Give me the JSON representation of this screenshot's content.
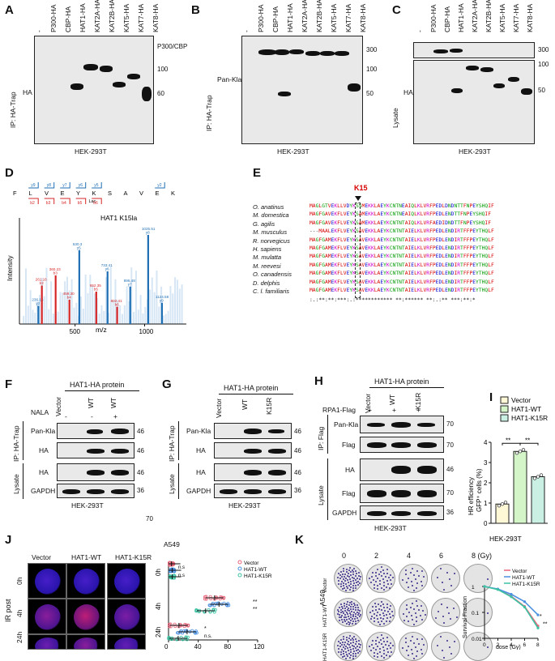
{
  "panels": {
    "A": "A",
    "B": "B",
    "C": "C",
    "D": "D",
    "E": "E",
    "F": "F",
    "G": "G",
    "H": "H",
    "I": "I",
    "J": "J",
    "K": "K"
  },
  "A": {
    "lanes": [
      "-",
      "P300-HA",
      "CBP-HA",
      "HAT1-HA",
      "KAT2A-HA",
      "KAT2B-HA",
      "KAT5-HA",
      "KAT7-HA",
      "KAT8-HA"
    ],
    "ip_label": "IP: HA-Trap",
    "blot_label": "HA",
    "markers": [
      "P300/CBP",
      "100",
      "60"
    ],
    "cell_line": "HEK-293T"
  },
  "B": {
    "lanes": [
      "-",
      "P300-HA",
      "CBP-HA",
      "HAT1-HA",
      "KAT2A-HA",
      "KAT2B-HA",
      "KAT5-HA",
      "KAT7-HA",
      "KAT8-HA"
    ],
    "ip_label": "IP: HA-Trap",
    "blot_label": "Pan-Kla",
    "markers": [
      "300",
      "100",
      "50"
    ],
    "cell_line": "HEK-293T"
  },
  "C": {
    "lanes": [
      "-",
      "P300-HA",
      "CBP-HA",
      "HAT1-HA",
      "KAT2A-HA",
      "KAT2B-HA",
      "KAT5-HA",
      "KAT7-HA",
      "KAT8-HA"
    ],
    "lysate_label": "Lysate",
    "blot_label": "HA",
    "markers": [
      "300",
      "100",
      "50"
    ],
    "cell_line": "HEK-293T"
  },
  "D": {
    "peptide": "HAT1 K15la",
    "residues": [
      "F",
      "L",
      "V",
      "E",
      "Y",
      "K",
      "S",
      "A",
      "V",
      "E",
      "K"
    ],
    "mod_label": "Lac",
    "y_ions": [
      "y9",
      "y8",
      "y7",
      "y6",
      "y5",
      "y2"
    ],
    "b_ions": [
      "b2",
      "b3",
      "b4",
      "b5",
      "b6"
    ],
    "ylabel": "Intensity",
    "xlabel": "m/z",
    "xticks": [
      "500",
      "1000"
    ],
    "peaks": [
      {
        "mz": 236.16,
        "label": "236.16",
        "ion": "y2",
        "rel": 0.18,
        "color": "#1f6fb5"
      },
      {
        "mz": 261.16,
        "label": "261.16",
        "ion": "b2",
        "rel": 0.38,
        "color": "#d62728"
      },
      {
        "mz": 360.23,
        "label": "360.23",
        "ion": "b3",
        "rel": 0.48,
        "color": "#d62728"
      },
      {
        "mz": 459.3,
        "label": "459.30",
        "ion": "b4",
        "rel": 0.24,
        "color": "#d62728"
      },
      {
        "mz": 530.3,
        "label": "530.3",
        "ion": "y5",
        "rel": 0.73,
        "color": "#1f6fb5"
      },
      {
        "mz": 652.35,
        "label": "652.35",
        "ion": "b5",
        "rel": 0.32,
        "color": "#d62728"
      },
      {
        "mz": 733.41,
        "label": "733.41",
        "ion": "y6",
        "rel": 0.52,
        "color": "#1f6fb5"
      },
      {
        "mz": 802.41,
        "label": "802.41",
        "ion": "b6",
        "rel": 0.17,
        "color": "#d62728"
      },
      {
        "mz": 896.48,
        "label": "896.48",
        "ion": "y7",
        "rel": 0.37,
        "color": "#1f6fb5"
      },
      {
        "mz": 1025.51,
        "label": "1025.51",
        "ion": "y8",
        "rel": 0.88,
        "color": "#1f6fb5"
      },
      {
        "mz": 1124.58,
        "label": "1124.58",
        "ion": "y9",
        "rel": 0.21,
        "color": "#1f6fb5"
      }
    ]
  },
  "E": {
    "site": "K15",
    "species": [
      "O. anatinus",
      "M. domestica",
      "G. agilis",
      "M. musculus",
      "R. norvegicus",
      "H. sapiens",
      "M. mulatta",
      "M. reevesi",
      "O. canadensis",
      "D. delphis",
      "C. l. familiaris"
    ],
    "sequences": [
      "MAGLGTVEKLLVDYKSSMEKKLAEYKCNTNEAIQLKLVRFPEDLDNDNTTFNPEYSHQIF",
      "MAGFGAVEKFLVEYKSAMEKKLAEYKCNTNEAIQLKLVRFPEDLENDTTFNPEYSHQIF",
      "MAGFGAVEKFLVEYKSAMEKKLAEYKCNTNTAIQLKLVRFAEDIDNDTTFNPEYSHQIF",
      "---MAALEKFLVEYKSAVEKKLAEYKCNTNTAIELKLVRFPEDLENDIRTFFPEYTHQLF",
      "MAGFGAMEKFLVEYKSAVEKKLAEYKCNTNTAIELKLVRFPEDLENDIRTFFPEYTHQLF",
      "MAGFGAMEKFLVEYKSAVEKKLAEYKCNTNTAIELKLVRFPEDLENDIRTFFPEYTHQLF",
      "MAGFGAMEKFLVEYKSAVEKKLAEYKCNTNTAIELKLVRFPEDLENDIRTFFPEYTHQLF",
      "MAGFGAMEKFLVEYKSAVEKKLAEYKCNTNTAIELKLVRFPEDLENDIRTFFPEYTHQLF",
      "MAGFGAMEKFLVEYKSAVEKKLAEYKCNTNTAIELKLVRFPEDLENDIRTFFPEYTHQLF",
      "MAGFGAMEKFLVEYKSAVEKKLAEYKCNTNTAIELKLVRFPEDLENDIRTFFPEYTHQLF",
      "MAGFGAMEKFLVEYKSAVEKKLAEYKCNTNTAIELKLVRFPEDLENDIRTFFPEYTHQLF"
    ],
    "consensus": ":.:**:**:***:.:************ **:****** **:.:** ***:**:*"
  },
  "F": {
    "header": "HAT1-HA protein",
    "lanes": [
      "Vector",
      "WT",
      "WT"
    ],
    "nala_label": "NALA",
    "nala": [
      "-",
      "-",
      "+"
    ],
    "ip_label": "IP: HA-Trap",
    "lysate_label": "Lysate",
    "rows": [
      "Pan-Kla",
      "HA",
      "HA",
      "GAPDH"
    ],
    "markers": [
      "46",
      "46",
      "46",
      "36",
      "70"
    ],
    "cell_line": "HEK-293T"
  },
  "G": {
    "header": "HAT1-HA protein",
    "lanes": [
      "Vector",
      "WT",
      "K15R"
    ],
    "ip_label": "IP: HA-Trap",
    "lysate_label": "Lysate",
    "rows": [
      "Pan-Kla",
      "HA",
      "HA",
      "GAPDH"
    ],
    "markers": [
      "46",
      "46",
      "46",
      "36"
    ],
    "cell_line": "HEK-293T"
  },
  "H": {
    "header": "HAT1-HA protein",
    "lanes": [
      "Vector",
      "WT",
      "K15R"
    ],
    "rpa_label": "RPA1-Flag",
    "rpa": [
      "+",
      "+",
      "+"
    ],
    "ip_label": "IP: Flag",
    "lysate_label": "Lysate",
    "rows": [
      "Pan-Kla",
      "Flag",
      "HA",
      "Flag",
      "GAPDH"
    ],
    "markers": [
      "70",
      "70",
      "46",
      "70",
      "36"
    ],
    "cell_line": "HEK-293T"
  },
  "I": {
    "legend": [
      "Vector",
      "HAT1-WT",
      "HAT1-K15R"
    ],
    "ylabel": "HR efficiency GFP+ cells (%)",
    "ylabel2": "GFP⁺ cells (%)",
    "ylabel1": "HR efficiency",
    "yticks": [
      "0",
      "1",
      "2",
      "3",
      "4"
    ],
    "sig": [
      "**",
      "**"
    ],
    "cell_line": "HEK-293T"
  },
  "J": {
    "cell_line": "A549",
    "columns": [
      "Vector",
      "HAT1-WT",
      "HAT1-K15R"
    ],
    "rows": [
      "0h",
      "4h",
      "24h"
    ],
    "ir_label": "IR post",
    "xlabel": "RPA1 foci/cell",
    "xticks": [
      "0",
      "40",
      "80",
      "120"
    ],
    "legend": [
      "Vector",
      "HAT1-WT",
      "HAT1-K15R"
    ],
    "sig_0h": [
      "n.s",
      "n.s"
    ],
    "sig_4h": [
      "**",
      "**"
    ],
    "sig_24h": [
      "*",
      "n.s."
    ]
  },
  "K": {
    "cell_line": "A549",
    "doses": [
      "0",
      "2",
      "4",
      "6",
      "8 (Gy)"
    ],
    "rows": [
      "Vector",
      "HAT1-WT",
      "HAT1-K15R"
    ],
    "legend": [
      "Vector",
      "HAT1-WT",
      "HAT1-K15R"
    ],
    "xlabel": "dose (Gy)",
    "ylabel": "Survival Fraction",
    "yticks": [
      "1",
      "0.1",
      "0.01"
    ],
    "xticks": [
      "0",
      "2",
      "4",
      "6",
      "8"
    ],
    "sig": [
      "*",
      "**"
    ]
  },
  "chart_data": [
    {
      "type": "bar",
      "title": "HR efficiency",
      "categories": [
        "Vector",
        "HAT1-WT",
        "HAT1-K15R"
      ],
      "values": [
        0.95,
        3.55,
        2.3
      ],
      "ylabel": "HR efficiency GFP+ cells (%)",
      "ylim": [
        0,
        4
      ]
    },
    {
      "type": "scatter",
      "title": "RPA1 foci/cell",
      "series": [
        {
          "name": "Vector",
          "values": {
            "0h": 4,
            "4h": 62,
            "24h": 14
          }
        },
        {
          "name": "HAT1-WT",
          "values": {
            "0h": 5,
            "4h": 68,
            "24h": 25
          }
        },
        {
          "name": "HAT1-K15R",
          "values": {
            "0h": 5,
            "4h": 50,
            "24h": 13
          }
        }
      ],
      "xlim": [
        0,
        120
      ]
    },
    {
      "type": "line",
      "title": "Survival Fraction",
      "x": [
        0,
        2,
        4,
        6,
        8
      ],
      "series": [
        {
          "name": "Vector",
          "values": [
            1,
            0.78,
            0.42,
            0.17,
            0.03
          ]
        },
        {
          "name": "HAT1-WT",
          "values": [
            1,
            0.8,
            0.5,
            0.26,
            0.08
          ]
        },
        {
          "name": "HAT1-K15R",
          "values": [
            1,
            0.76,
            0.4,
            0.16,
            0.025
          ]
        }
      ],
      "ylim": [
        0.01,
        1
      ],
      "xlabel": "dose (Gy)"
    }
  ],
  "colors": {
    "vector": "#e8647a",
    "wt": "#4a8fe0",
    "k15r": "#3cc3a3",
    "barVector": "#fff8d6",
    "barWT": "#d4f5c8",
    "barK15R": "#c9f0e3"
  }
}
